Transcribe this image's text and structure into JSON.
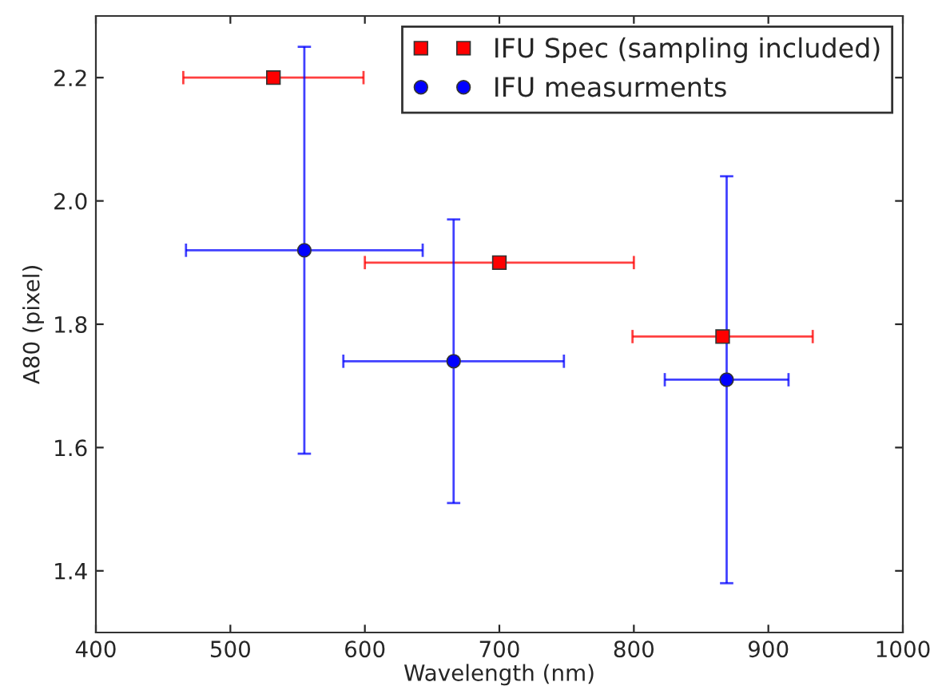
{
  "chart_data": {
    "type": "scatter",
    "xlabel": "Wavelength (nm)",
    "ylabel": "A80 (pixel)",
    "xlim": [
      400,
      1000
    ],
    "xticks": [
      400,
      500,
      600,
      700,
      800,
      900,
      1000
    ],
    "ylim": [
      1.3,
      2.3
    ],
    "yticks": [
      1.4,
      1.6,
      1.8,
      {
        "value": 2.0,
        "label": "2.0"
      },
      2.2
    ],
    "grid": false,
    "legend": "top right",
    "series": [
      {
        "name": "IFU Spec (sampling included)",
        "color": "#ff0000",
        "marker": "square",
        "x": [
          532,
          700,
          866
        ],
        "values": [
          2.2,
          1.9,
          1.78
        ],
        "xerrors": [
          67,
          100,
          67
        ]
      },
      {
        "name": "IFU measurments",
        "color": "#0000ff",
        "marker": "circle",
        "x": [
          555,
          666,
          869
        ],
        "values": [
          1.92,
          1.74,
          1.71
        ],
        "xerrors": [
          88,
          82,
          46
        ],
        "errors": [
          0.33,
          0.23,
          0.33
        ]
      }
    ]
  }
}
